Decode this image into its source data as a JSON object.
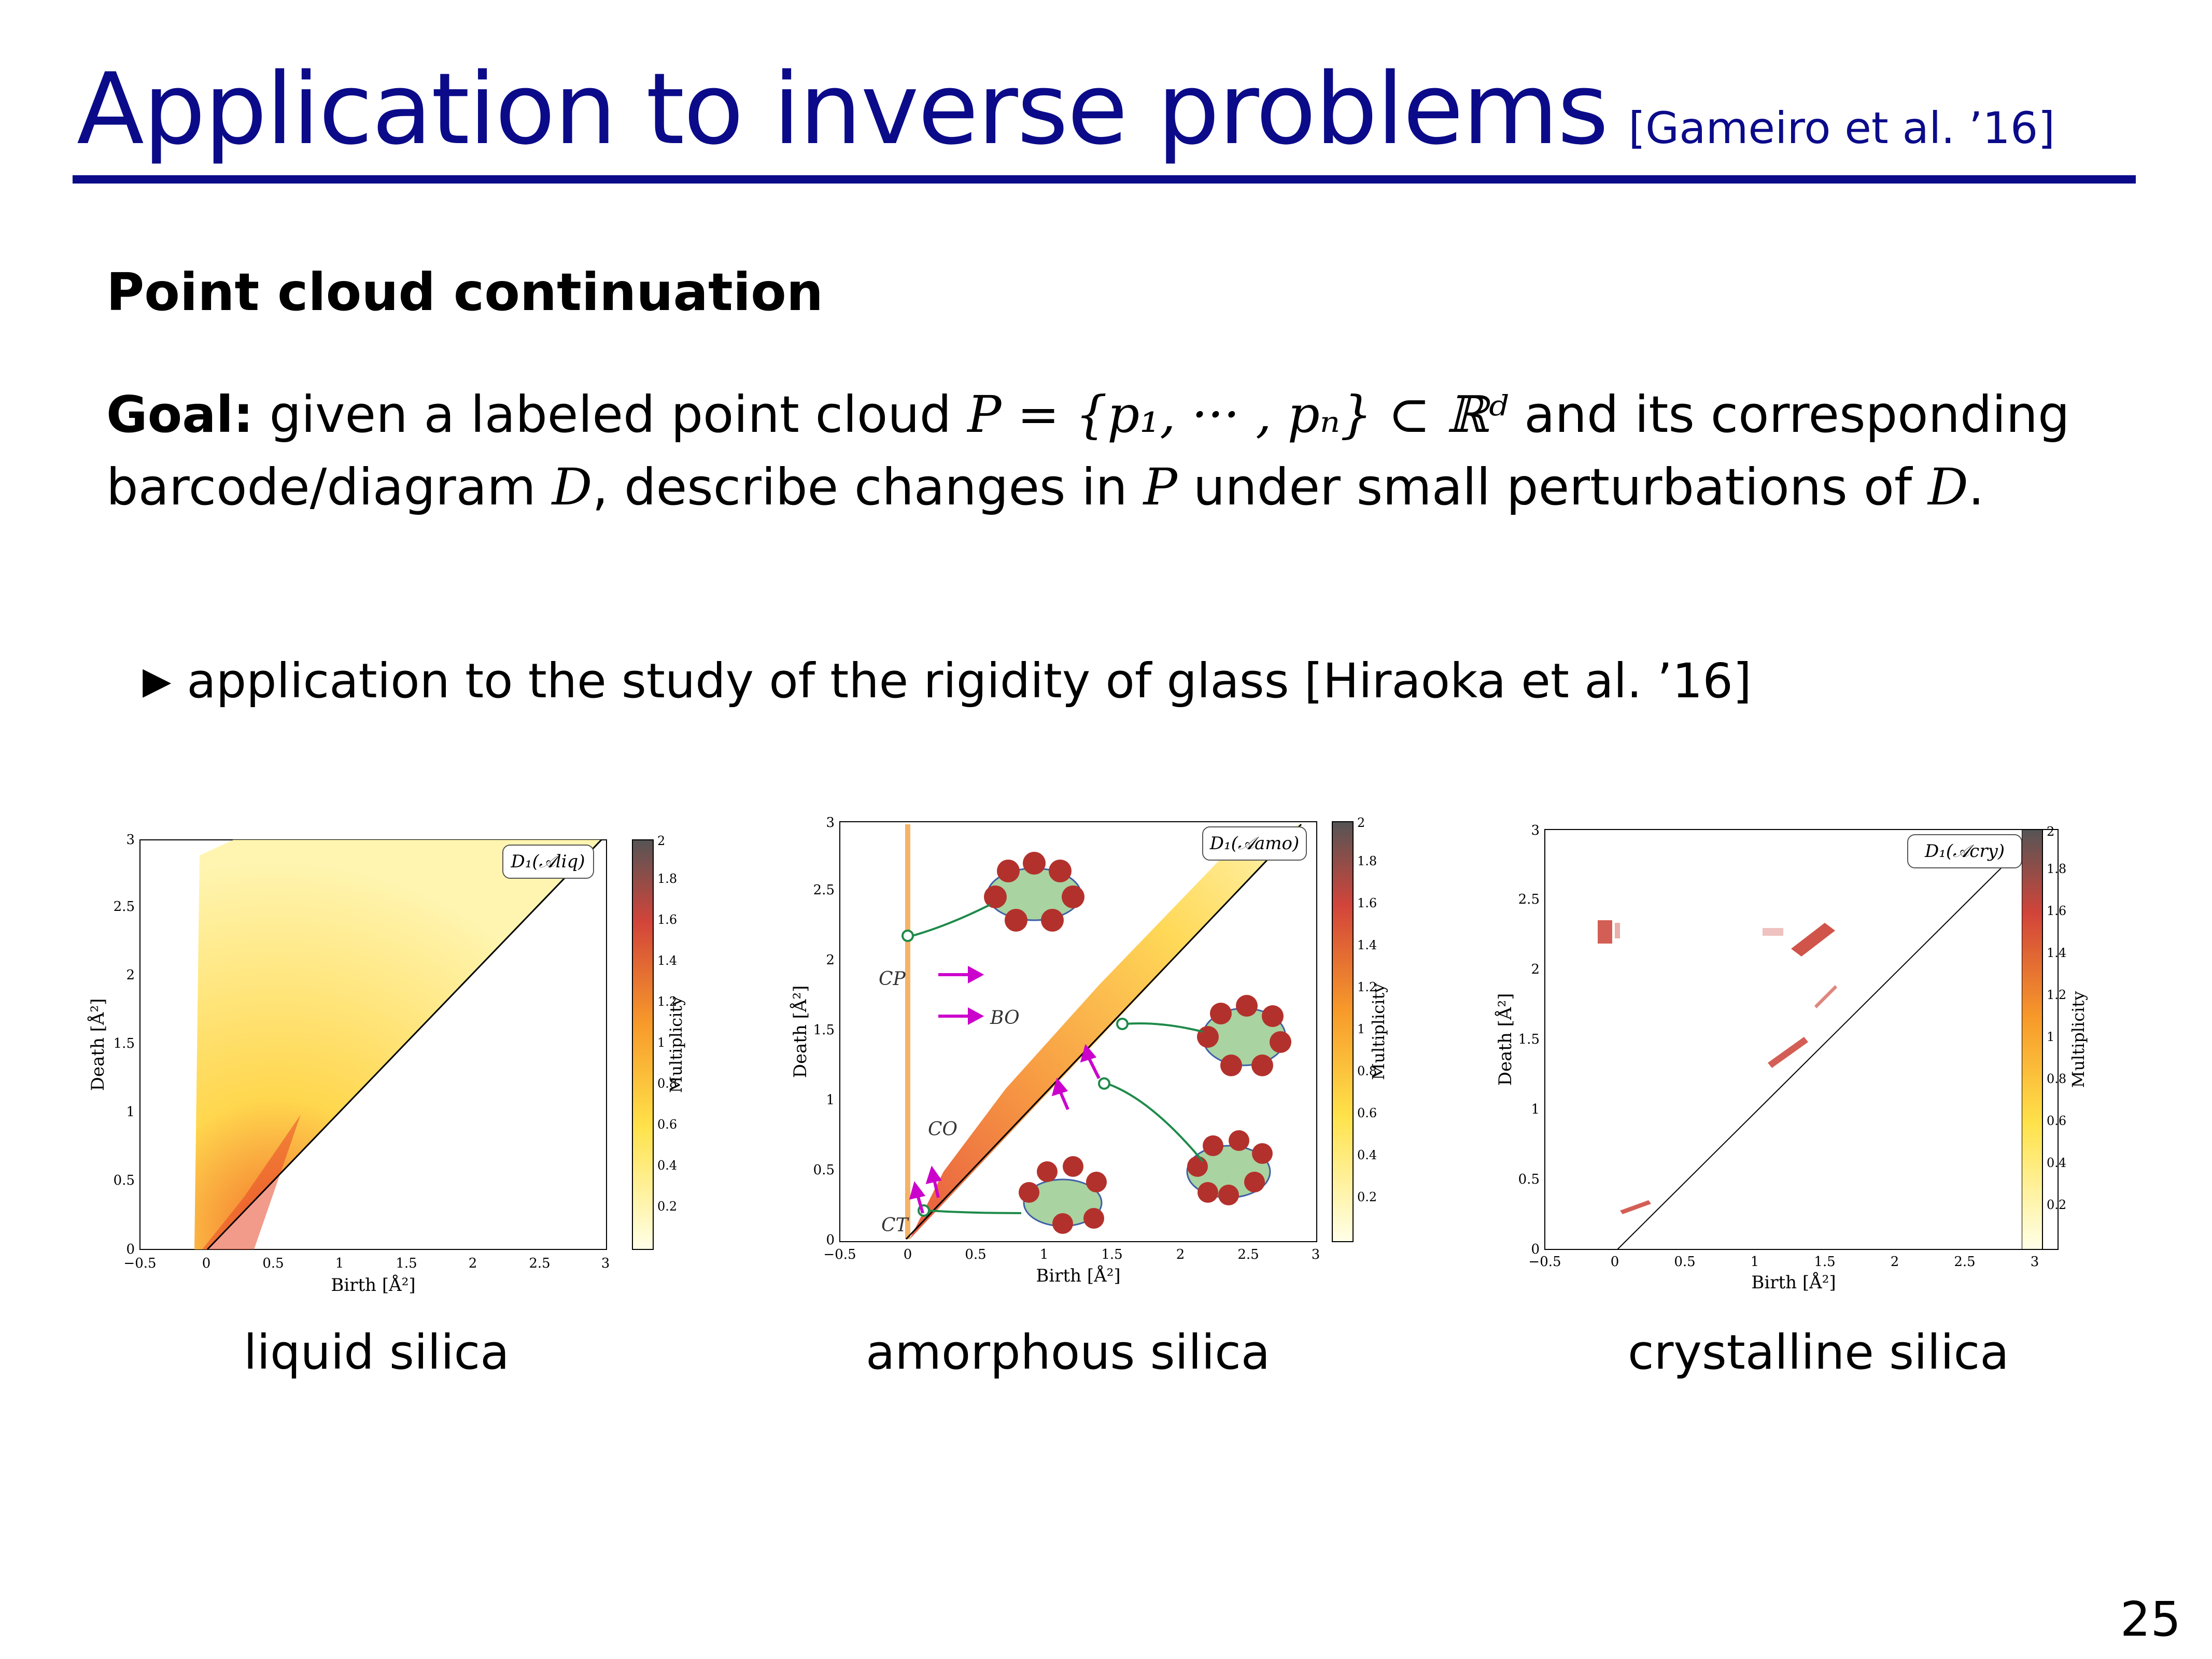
{
  "title": {
    "main": "Application to inverse problems",
    "citation": "[Gameiro et al. ’16]"
  },
  "section_heading": "Point cloud continuation",
  "goal": {
    "label": "Goal:",
    "text_1": "given a labeled point cloud",
    "math_1": "P = {p₁, ··· , pₙ} ⊂ ℝᵈ",
    "text_2": "and its corresponding barcode/diagram",
    "math_2": "D",
    "text_3": ", describe changes in",
    "math_3": "P",
    "text_4": "under small perturbations of",
    "math_4": "D",
    "text_5": "."
  },
  "bullet": {
    "icon": "triangle-right-icon",
    "text": "application to the study of the rigidity of glass [Hiraoka et al. ’16]"
  },
  "figures": [
    {
      "caption": "liquid silica",
      "legend": "D₁(𝒜liq)",
      "xlabel": "Birth [Å²]",
      "ylabel": "Death [Å²]",
      "x_ticks": [
        "−0.5",
        "0",
        "0.5",
        "1",
        "1.5",
        "2",
        "2.5",
        "3"
      ],
      "y_ticks": [
        "0",
        "0.5",
        "1",
        "1.5",
        "2",
        "2.5",
        "3"
      ],
      "colorbar_label": "Multiplicity",
      "colorbar_ticks": [
        "0.2",
        "0.4",
        "0.6",
        "0.8",
        "1",
        "1.2",
        "1.4",
        "1.6",
        "1.8",
        "2"
      ]
    },
    {
      "caption": "amorphous silica",
      "legend": "D₁(𝒜amo)",
      "xlabel": "Birth [Å²]",
      "ylabel": "Death [Å²]",
      "x_ticks": [
        "−0.5",
        "0",
        "0.5",
        "1",
        "1.5",
        "2",
        "2.5",
        "3"
      ],
      "y_ticks": [
        "0",
        "0.5",
        "1",
        "1.5",
        "2",
        "2.5",
        "3"
      ],
      "colorbar_label": "Multiplicity",
      "colorbar_ticks": [
        "0.2",
        "0.4",
        "0.6",
        "0.8",
        "1",
        "1.2",
        "1.4",
        "1.6",
        "1.8",
        "2"
      ],
      "annotations": [
        "CP",
        "BO",
        "CO",
        "CT"
      ]
    },
    {
      "caption": "crystalline silica",
      "legend": "D₁(𝒜cry)",
      "xlabel": "Birth [Å²]",
      "ylabel": "Death [Å²]",
      "x_ticks": [
        "−0.5",
        "0",
        "0.5",
        "1",
        "1.5",
        "2",
        "2.5",
        "3"
      ],
      "y_ticks": [
        "0",
        "0.5",
        "1",
        "1.5",
        "2",
        "2.5",
        "3"
      ],
      "colorbar_label": "Multiplicity",
      "colorbar_ticks": [
        "0.2",
        "0.4",
        "0.6",
        "0.8",
        "1",
        "1.2",
        "1.4",
        "1.6",
        "1.8",
        "2"
      ]
    }
  ],
  "page_number": "25",
  "colors": {
    "title": "#0b0b8a",
    "diagonal": "#000000",
    "arrow_magenta": "#cc00cc",
    "arrow_green": "#1e8a4a",
    "atom": "#b3312c",
    "ring_fill": "#a9d3a0"
  }
}
